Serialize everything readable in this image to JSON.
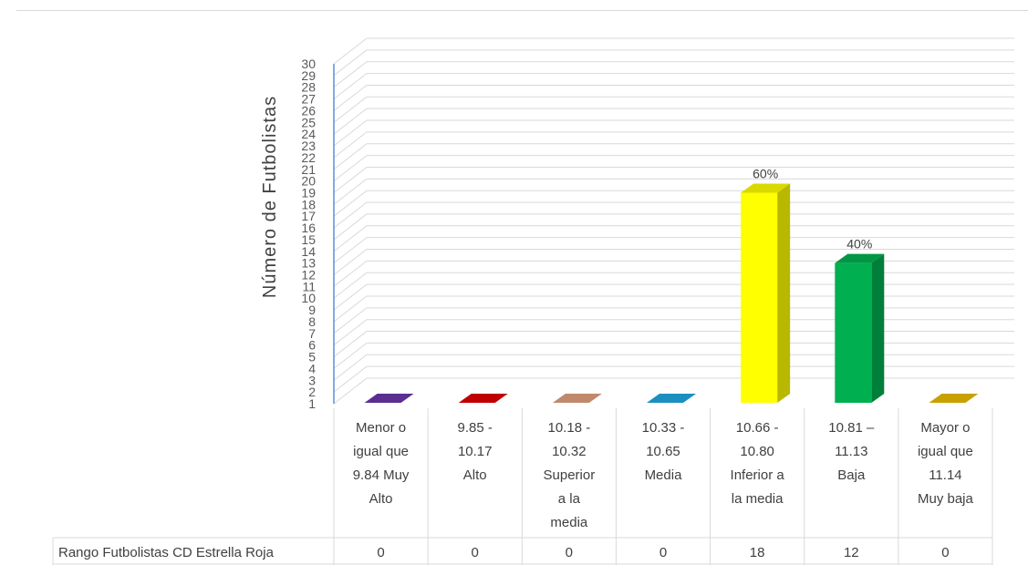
{
  "chart_data": {
    "type": "bar",
    "ylabel": "Número de Futbolistas",
    "ylim": [
      1,
      30
    ],
    "yticks": [
      1,
      2,
      3,
      4,
      5,
      6,
      7,
      8,
      9,
      10,
      11,
      12,
      13,
      14,
      15,
      16,
      17,
      18,
      19,
      20,
      21,
      22,
      23,
      24,
      25,
      26,
      27,
      28,
      29,
      30
    ],
    "grid": true,
    "categories": [
      [
        "Menor o",
        "igual que",
        "9.84 Muy",
        "Alto"
      ],
      [
        "9.85  -",
        "10.17",
        "Alto"
      ],
      [
        "10.18  -",
        "10.32",
        "Superior",
        "a la",
        "media"
      ],
      [
        "10.33  -",
        "10.65",
        "Media"
      ],
      [
        "10.66  -",
        "10.80",
        "Inferior a",
        "la media"
      ],
      [
        "10.81 –",
        "11.13",
        "Baja"
      ],
      [
        "Mayor o",
        "igual que",
        "11.14",
        "Muy baja"
      ]
    ],
    "series": [
      {
        "name": "Rango Futbolistas CD Estrella Roja",
        "values": [
          0,
          0,
          0,
          0,
          18,
          12,
          0
        ],
        "table_values": [
          "0",
          "0",
          "0",
          "0",
          "18",
          "12",
          "0"
        ],
        "data_labels": [
          "",
          "",
          "",
          "",
          "60%",
          "40%",
          ""
        ],
        "colors": [
          "#5b2e91",
          "#c00000",
          "#c0896b",
          "#1a8fc0",
          "#ffff00",
          "#00b050",
          "#c8a000"
        ]
      }
    ]
  }
}
